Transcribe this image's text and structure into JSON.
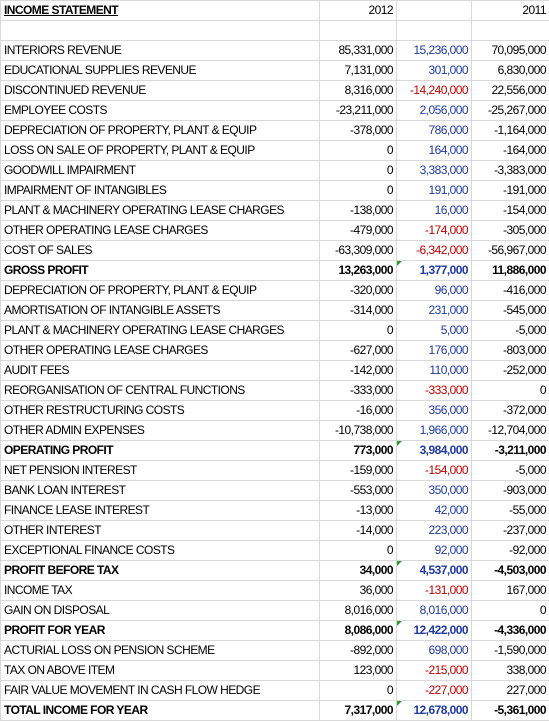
{
  "header": {
    "title": "INCOME STATEMENT",
    "year_a": "2012",
    "year_b": "2011"
  },
  "rows": [
    {
      "label": "INTERIORS REVENUE",
      "v2012": "85,331,000",
      "var": "15,236,000",
      "v2011": "70,095,000",
      "bold": false,
      "var_neg": false,
      "flag": false
    },
    {
      "label": "EDUCATIONAL SUPPLIES REVENUE",
      "v2012": "7,131,000",
      "var": "301,000",
      "v2011": "6,830,000",
      "bold": false,
      "var_neg": false,
      "flag": false
    },
    {
      "label": "DISCONTINUED REVENUE",
      "v2012": "8,316,000",
      "var": "-14,240,000",
      "v2011": "22,556,000",
      "bold": false,
      "var_neg": true,
      "flag": false
    },
    {
      "label": "EMPLOYEE COSTS",
      "v2012": "-23,211,000",
      "var": "2,056,000",
      "v2011": "-25,267,000",
      "bold": false,
      "var_neg": false,
      "flag": false
    },
    {
      "label": "DEPRECIATION OF PROPERTY, PLANT & EQUIP",
      "v2012": "-378,000",
      "var": "786,000",
      "v2011": "-1,164,000",
      "bold": false,
      "var_neg": false,
      "flag": false
    },
    {
      "label": "LOSS ON SALE OF PROPERTY, PLANT & EQUIP",
      "v2012": "0",
      "var": "164,000",
      "v2011": "-164,000",
      "bold": false,
      "var_neg": false,
      "flag": false
    },
    {
      "label": "GOODWILL IMPAIRMENT",
      "v2012": "0",
      "var": "3,383,000",
      "v2011": "-3,383,000",
      "bold": false,
      "var_neg": false,
      "flag": false
    },
    {
      "label": "IMPAIRMENT OF INTANGIBLES",
      "v2012": "0",
      "var": "191,000",
      "v2011": "-191,000",
      "bold": false,
      "var_neg": false,
      "flag": false
    },
    {
      "label": "PLANT & MACHINERY OPERATING LEASE CHARGES",
      "v2012": "-138,000",
      "var": "16,000",
      "v2011": "-154,000",
      "bold": false,
      "var_neg": false,
      "flag": false
    },
    {
      "label": "OTHER OPERATING LEASE CHARGES",
      "v2012": "-479,000",
      "var": "-174,000",
      "v2011": "-305,000",
      "bold": false,
      "var_neg": true,
      "flag": false
    },
    {
      "label": "COST OF SALES",
      "v2012": "-63,309,000",
      "var": "-6,342,000",
      "v2011": "-56,967,000",
      "bold": false,
      "var_neg": true,
      "flag": false
    },
    {
      "label": "GROSS PROFIT",
      "v2012": "13,263,000",
      "var": "1,377,000",
      "v2011": "11,886,000",
      "bold": true,
      "var_neg": false,
      "flag": true
    },
    {
      "label": "DEPRECIATION OF PROPERTY, PLANT & EQUIP",
      "v2012": "-320,000",
      "var": "96,000",
      "v2011": "-416,000",
      "bold": false,
      "var_neg": false,
      "flag": false
    },
    {
      "label": "AMORTISATION OF INTANGIBLE ASSETS",
      "v2012": "-314,000",
      "var": "231,000",
      "v2011": "-545,000",
      "bold": false,
      "var_neg": false,
      "flag": false
    },
    {
      "label": "PLANT & MACHINERY OPERATING LEASE CHARGES",
      "v2012": "0",
      "var": "5,000",
      "v2011": "-5,000",
      "bold": false,
      "var_neg": false,
      "flag": false
    },
    {
      "label": "OTHER OPERATING LEASE CHARGES",
      "v2012": "-627,000",
      "var": "176,000",
      "v2011": "-803,000",
      "bold": false,
      "var_neg": false,
      "flag": false
    },
    {
      "label": "AUDIT FEES",
      "v2012": "-142,000",
      "var": "110,000",
      "v2011": "-252,000",
      "bold": false,
      "var_neg": false,
      "flag": false
    },
    {
      "label": "REORGANISATION OF CENTRAL FUNCTIONS",
      "v2012": "-333,000",
      "var": "-333,000",
      "v2011": "0",
      "bold": false,
      "var_neg": true,
      "flag": false
    },
    {
      "label": "OTHER RESTRUCTURING COSTS",
      "v2012": "-16,000",
      "var": "356,000",
      "v2011": "-372,000",
      "bold": false,
      "var_neg": false,
      "flag": false
    },
    {
      "label": "OTHER ADMIN EXPENSES",
      "v2012": "-10,738,000",
      "var": "1,966,000",
      "v2011": "-12,704,000",
      "bold": false,
      "var_neg": false,
      "flag": false
    },
    {
      "label": "OPERATING PROFIT",
      "v2012": "773,000",
      "var": "3,984,000",
      "v2011": "-3,211,000",
      "bold": true,
      "var_neg": false,
      "flag": true
    },
    {
      "label": "NET PENSION INTEREST",
      "v2012": "-159,000",
      "var": "-154,000",
      "v2011": "-5,000",
      "bold": false,
      "var_neg": true,
      "flag": false
    },
    {
      "label": "BANK LOAN INTEREST",
      "v2012": "-553,000",
      "var": "350,000",
      "v2011": "-903,000",
      "bold": false,
      "var_neg": false,
      "flag": false
    },
    {
      "label": "FINANCE LEASE INTEREST",
      "v2012": "-13,000",
      "var": "42,000",
      "v2011": "-55,000",
      "bold": false,
      "var_neg": false,
      "flag": false
    },
    {
      "label": "OTHER INTEREST",
      "v2012": "-14,000",
      "var": "223,000",
      "v2011": "-237,000",
      "bold": false,
      "var_neg": false,
      "flag": false
    },
    {
      "label": "EXCEPTIONAL FINANCE COSTS",
      "v2012": "0",
      "var": "92,000",
      "v2011": "-92,000",
      "bold": false,
      "var_neg": false,
      "flag": false
    },
    {
      "label": "PROFIT BEFORE TAX",
      "v2012": "34,000",
      "var": "4,537,000",
      "v2011": "-4,503,000",
      "bold": true,
      "var_neg": false,
      "flag": true
    },
    {
      "label": "INCOME TAX",
      "v2012": "36,000",
      "var": "-131,000",
      "v2011": "167,000",
      "bold": false,
      "var_neg": true,
      "flag": false
    },
    {
      "label": "GAIN ON DISPOSAL",
      "v2012": "8,016,000",
      "var": "8,016,000",
      "v2011": "0",
      "bold": false,
      "var_neg": false,
      "flag": false
    },
    {
      "label": "PROFIT FOR YEAR",
      "v2012": "8,086,000",
      "var": "12,422,000",
      "v2011": "-4,336,000",
      "bold": true,
      "var_neg": false,
      "flag": true
    },
    {
      "label": "ACTURIAL LOSS ON PENSION SCHEME",
      "v2012": "-892,000",
      "var": "698,000",
      "v2011": "-1,590,000",
      "bold": false,
      "var_neg": false,
      "flag": false
    },
    {
      "label": "TAX ON ABOVE ITEM",
      "v2012": "123,000",
      "var": "-215,000",
      "v2011": "338,000",
      "bold": false,
      "var_neg": true,
      "flag": false
    },
    {
      "label": "FAIR VALUE MOVEMENT IN CASH FLOW HEDGE",
      "v2012": "0",
      "var": "-227,000",
      "v2011": "227,000",
      "bold": false,
      "var_neg": true,
      "flag": false
    },
    {
      "label": "TOTAL INCOME FOR YEAR",
      "v2012": "7,317,000",
      "var": "12,678,000",
      "v2011": "-5,361,000",
      "bold": true,
      "var_neg": false,
      "flag": true
    }
  ]
}
